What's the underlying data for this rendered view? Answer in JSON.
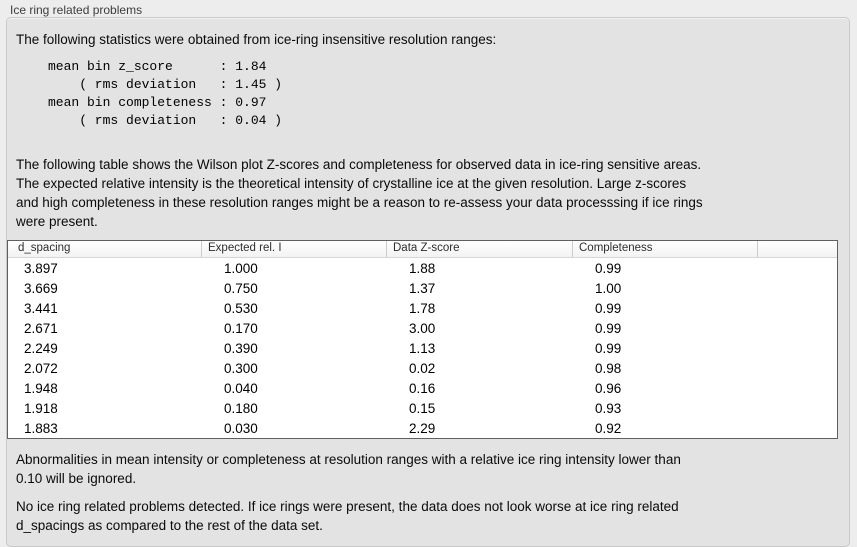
{
  "group": {
    "label": "Ice ring related problems"
  },
  "intro": "The following statistics were obtained from ice-ring insensitive resolution ranges:",
  "stats_block": "mean bin z_score      : 1.84\n    ( rms deviation   : 1.45 )\nmean bin completeness : 0.97\n    ( rms deviation   : 0.04 )",
  "stats": {
    "mean_bin_z_score": "1.84",
    "z_score_rms_deviation": "1.45",
    "mean_bin_completeness": "0.97",
    "completeness_rms_deviation": "0.04"
  },
  "table_description": "The following table shows the Wilson plot Z-scores and completeness for observed data in ice-ring sensitive areas.\nThe expected relative intensity is the theoretical intensity of crystalline ice at the given resolution. Large z-scores\nand high completeness in these resolution ranges might be a reason to re-assess your data processsing if ice rings\nwere present.",
  "table": {
    "headers": [
      "d_spacing",
      "Expected rel. I",
      "Data Z-score",
      "Completeness"
    ],
    "rows": [
      [
        "3.897",
        "1.000",
        "1.88",
        "0.99"
      ],
      [
        "3.669",
        "0.750",
        "1.37",
        "1.00"
      ],
      [
        "3.441",
        "0.530",
        "1.78",
        "0.99"
      ],
      [
        "2.671",
        "0.170",
        "3.00",
        "0.99"
      ],
      [
        "2.249",
        "0.390",
        "1.13",
        "0.99"
      ],
      [
        "2.072",
        "0.300",
        "0.02",
        "0.98"
      ],
      [
        "1.948",
        "0.040",
        "0.16",
        "0.96"
      ],
      [
        "1.918",
        "0.180",
        "0.15",
        "0.93"
      ],
      [
        "1.883",
        "0.030",
        "2.29",
        "0.92"
      ]
    ]
  },
  "note_ignore": "Abnormalities in mean intensity or completeness at resolution ranges with a relative ice ring intensity lower than\n0.10 will be ignored.",
  "conclusion": "No ice ring related problems detected. If ice rings were present, the data does not look worse at ice ring related\nd_spacings as compared to the rest of the data set."
}
